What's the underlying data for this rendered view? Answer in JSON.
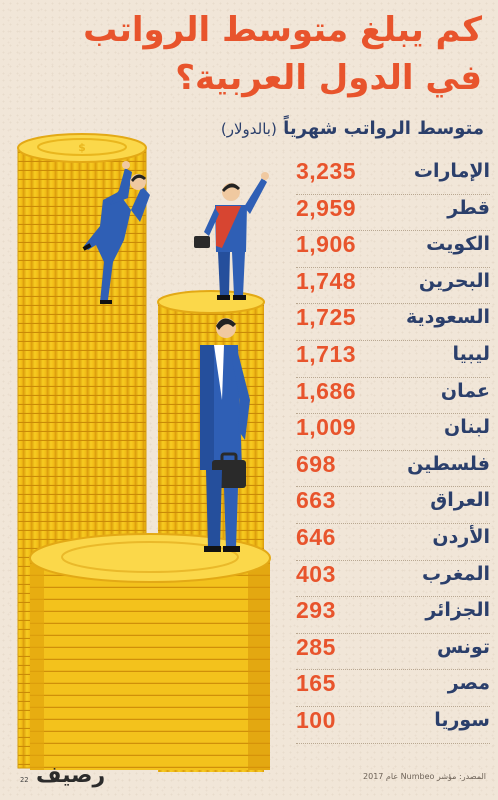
{
  "title_line1": "كم يبلغ متوسط الرواتب",
  "title_line2": "في الدول العربية؟",
  "subtitle": "متوسط الرواتب شهرياً",
  "subtitle_unit": "(بالدولار)",
  "source": "المصدر: مؤشر Numbeo عام 2017",
  "logo_text": "رصيف",
  "logo_number": "22",
  "colors": {
    "accent": "#e8542c",
    "navy": "#2b3f6b",
    "coin": "#f5c51e",
    "background": "#f1e6d8"
  },
  "chart_data": {
    "type": "table",
    "title": "كم يبلغ متوسط الرواتب في الدول العربية؟",
    "subtitle": "متوسط الرواتب شهرياً (بالدولار)",
    "rows": [
      {
        "country": "الإمارات",
        "value_label": "3,235",
        "value": 3235
      },
      {
        "country": "قطر",
        "value_label": "2,959",
        "value": 2959
      },
      {
        "country": "الكويت",
        "value_label": "1,906",
        "value": 1906
      },
      {
        "country": "البحرين",
        "value_label": "1,748",
        "value": 1748
      },
      {
        "country": "السعودية",
        "value_label": "1,725",
        "value": 1725
      },
      {
        "country": "ليبيا",
        "value_label": "1,713",
        "value": 1713
      },
      {
        "country": "عمان",
        "value_label": "1,686",
        "value": 1686
      },
      {
        "country": "لبنان",
        "value_label": "1,009",
        "value": 1009
      },
      {
        "country": "فلسطين",
        "value_label": "698",
        "value": 698
      },
      {
        "country": "العراق",
        "value_label": "663",
        "value": 663
      },
      {
        "country": "الأردن",
        "value_label": "646",
        "value": 646
      },
      {
        "country": "المغرب",
        "value_label": "403",
        "value": 403
      },
      {
        "country": "الجزائر",
        "value_label": "293",
        "value": 293
      },
      {
        "country": "تونس",
        "value_label": "285",
        "value": 285
      },
      {
        "country": "مصر",
        "value_label": "165",
        "value": 165
      },
      {
        "country": "سوريا",
        "value_label": "100",
        "value": 100
      }
    ]
  }
}
